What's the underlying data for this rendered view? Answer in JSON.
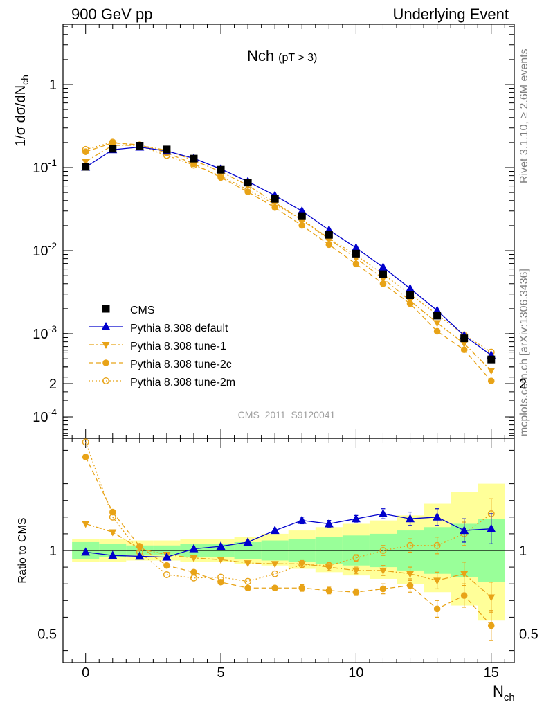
{
  "header": {
    "left": "900 GeV pp",
    "right": "Underlying Event"
  },
  "plot_title": "Nch",
  "plot_title_sub": "(pT >  3)",
  "side_labels": {
    "rivet": "Rivet 3.1.10, ≥ 2.6M events",
    "mcplots": "mcplots.cern.ch [arXiv:1306.3436]"
  },
  "analysis_id": "CMS_2011_S9120041",
  "colors": {
    "data": "#000000",
    "default": "#0000cc",
    "tune": "#e8a317",
    "band_inner": "#99ff99",
    "band_outer": "#ffff99"
  },
  "chart_data": [
    {
      "type": "scatter",
      "panel": "main",
      "ylabel": "1/σ dσ/dN_ch",
      "yscale": "log",
      "ylim": [
        5e-05,
        5
      ],
      "xlim": [
        -0.7,
        15.8
      ],
      "y_tick_labels": [
        "10^-4",
        "10^-3",
        "10^-2",
        "10^-1",
        "1"
      ],
      "legend_position": "lower-left",
      "x": [
        0,
        1,
        2,
        3,
        4,
        5,
        6,
        7,
        8,
        9,
        10,
        11,
        12,
        13,
        14,
        15
      ],
      "series": [
        {
          "name": "CMS",
          "style": "data",
          "marker": "square",
          "values": [
            0.102,
            0.168,
            0.183,
            0.165,
            0.128,
            0.094,
            0.066,
            0.042,
            0.026,
            0.0155,
            0.0092,
            0.0052,
            0.0029,
            0.00165,
            0.00088,
            0.00049
          ]
        },
        {
          "name": "Pythia 8.308 default",
          "style": "default",
          "marker": "triangle-up",
          "line": "solid",
          "values": [
            0.101,
            0.164,
            0.176,
            0.158,
            0.129,
            0.096,
            0.068,
            0.046,
            0.03,
            0.0177,
            0.0108,
            0.0063,
            0.0035,
            0.0019,
            0.00095,
            0.00055
          ]
        },
        {
          "name": "Pythia 8.308 tune-1",
          "style": "tune",
          "marker": "triangle-down",
          "line": "dashdot",
          "values": [
            0.118,
            0.185,
            0.185,
            0.161,
            0.122,
            0.089,
            0.061,
            0.038,
            0.0232,
            0.0138,
            0.0081,
            0.0046,
            0.0025,
            0.00135,
            0.00076,
            0.00036
          ]
        },
        {
          "name": "Pythia 8.308 tune-2c",
          "style": "tune",
          "marker": "circle-filled",
          "line": "dashed",
          "values": [
            0.155,
            0.198,
            0.188,
            0.15,
            0.111,
            0.076,
            0.051,
            0.033,
            0.0201,
            0.0118,
            0.0069,
            0.004,
            0.0023,
            0.00107,
            0.00064,
            0.00027
          ]
        },
        {
          "name": "Pythia 8.308 tune-2m",
          "style": "tune",
          "marker": "circle-open",
          "line": "dotted",
          "values": [
            0.165,
            0.202,
            0.182,
            0.14,
            0.107,
            0.079,
            0.054,
            0.036,
            0.0238,
            0.0141,
            0.0088,
            0.0052,
            0.003,
            0.0017,
            0.00097,
            0.0006
          ]
        }
      ]
    },
    {
      "type": "scatter",
      "panel": "ratio",
      "xlabel": "N_ch",
      "ylabel": "Ratio to CMS",
      "ylim": [
        0.35,
        2.35
      ],
      "xlim": [
        -0.7,
        15.8
      ],
      "x_tick_labels": [
        "0",
        "5",
        "10",
        "15"
      ],
      "y_tick_labels": [
        "0.5",
        "1",
        "2"
      ],
      "x": [
        0,
        1,
        2,
        3,
        4,
        5,
        6,
        7,
        8,
        9,
        10,
        11,
        12,
        13,
        14,
        15
      ],
      "band_inner": [
        [
          0.95,
          1.05
        ],
        [
          0.96,
          1.04
        ],
        [
          0.97,
          1.03
        ],
        [
          0.97,
          1.03
        ],
        [
          0.96,
          1.04
        ],
        [
          0.96,
          1.04
        ],
        [
          0.95,
          1.05
        ],
        [
          0.94,
          1.06
        ],
        [
          0.93,
          1.07
        ],
        [
          0.92,
          1.08
        ],
        [
          0.91,
          1.09
        ],
        [
          0.9,
          1.1
        ],
        [
          0.88,
          1.12
        ],
        [
          0.86,
          1.14
        ],
        [
          0.84,
          1.16
        ],
        [
          0.81,
          1.19
        ]
      ],
      "band_outer": [
        [
          0.93,
          1.07
        ],
        [
          0.93,
          1.07
        ],
        [
          0.94,
          1.06
        ],
        [
          0.94,
          1.06
        ],
        [
          0.93,
          1.07
        ],
        [
          0.93,
          1.07
        ],
        [
          0.92,
          1.08
        ],
        [
          0.91,
          1.1
        ],
        [
          0.89,
          1.12
        ],
        [
          0.87,
          1.14
        ],
        [
          0.85,
          1.16
        ],
        [
          0.83,
          1.18
        ],
        [
          0.8,
          1.21
        ],
        [
          0.75,
          1.28
        ],
        [
          0.67,
          1.35
        ],
        [
          0.58,
          1.4
        ]
      ],
      "series": [
        {
          "name": "Pythia 8.308 default",
          "style": "default",
          "marker": "triangle-up",
          "line": "solid",
          "values": [
            0.99,
            0.97,
            0.965,
            0.96,
            1.01,
            1.025,
            1.05,
            1.12,
            1.18,
            1.16,
            1.19,
            1.22,
            1.19,
            1.2,
            1.12,
            1.13
          ],
          "errors": [
            0.01,
            0.01,
            0.01,
            0.01,
            0.01,
            0.01,
            0.01,
            0.01,
            0.02,
            0.02,
            0.02,
            0.03,
            0.04,
            0.05,
            0.07,
            0.09
          ]
        },
        {
          "name": "Pythia 8.308 tune-1",
          "style": "tune",
          "marker": "triangle-down",
          "line": "dashdot",
          "values": [
            1.16,
            1.11,
            1.01,
            0.975,
            0.955,
            0.945,
            0.925,
            0.92,
            0.92,
            0.9,
            0.88,
            0.88,
            0.86,
            0.82,
            0.86,
            0.72
          ],
          "errors": [
            0.01,
            0.01,
            0.01,
            0.01,
            0.01,
            0.01,
            0.01,
            0.01,
            0.02,
            0.02,
            0.02,
            0.03,
            0.04,
            0.05,
            0.07,
            0.09
          ]
        },
        {
          "name": "Pythia 8.308 tune-2c",
          "style": "tune",
          "marker": "circle-filled",
          "line": "dashed",
          "values": [
            1.56,
            1.23,
            1.025,
            0.91,
            0.87,
            0.81,
            0.775,
            0.775,
            0.775,
            0.76,
            0.75,
            0.77,
            0.79,
            0.65,
            0.73,
            0.55
          ],
          "errors": [
            0.01,
            0.01,
            0.01,
            0.01,
            0.01,
            0.01,
            0.01,
            0.01,
            0.02,
            0.02,
            0.02,
            0.03,
            0.04,
            0.05,
            0.07,
            0.09
          ]
        },
        {
          "name": "Pythia 8.308 tune-2m",
          "style": "tune",
          "marker": "circle-open",
          "line": "dotted",
          "values": [
            1.65,
            1.2,
            0.99,
            0.855,
            0.835,
            0.84,
            0.815,
            0.86,
            0.915,
            0.91,
            0.955,
            1.0,
            1.03,
            1.03,
            1.1,
            1.22
          ],
          "errors": [
            0.01,
            0.01,
            0.01,
            0.01,
            0.01,
            0.01,
            0.01,
            0.01,
            0.02,
            0.02,
            0.02,
            0.03,
            0.04,
            0.05,
            0.07,
            0.09
          ]
        }
      ]
    }
  ]
}
